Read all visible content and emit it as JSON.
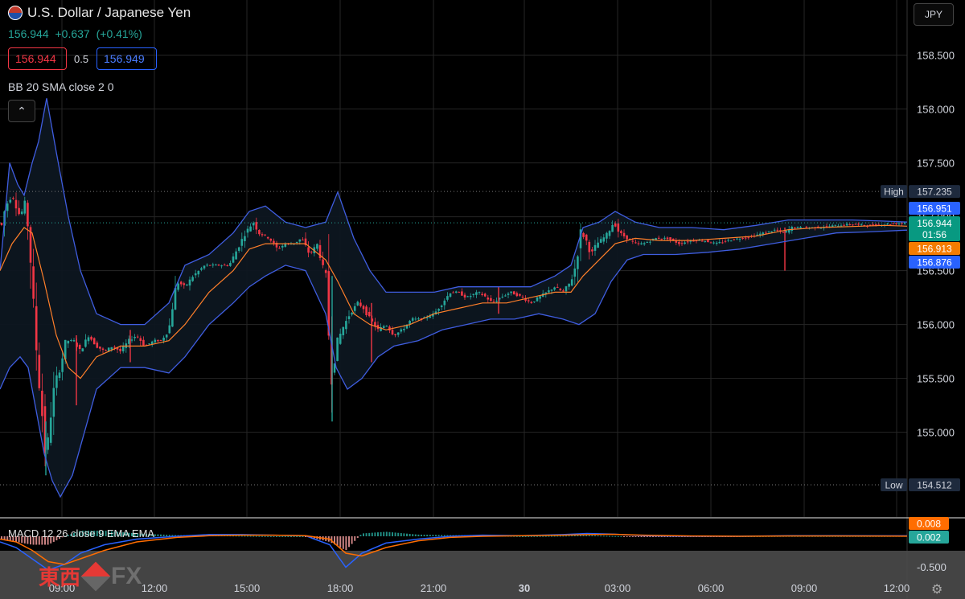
{
  "header": {
    "title": "U.S. Dollar / Japanese Yen",
    "price": "156.944",
    "change": "+0.637",
    "change_pct": "(+0.41%)"
  },
  "trade": {
    "sell_price": "156.944",
    "spread": "0.5",
    "buy_price": "156.949"
  },
  "indicators": {
    "bb_label": "BB 20 SMA close 2 0",
    "macd_label": "MACD 12 26 close 9 EMA EMA"
  },
  "currency_button": "JPY",
  "colors": {
    "background": "#000000",
    "up": "#26a69a",
    "down": "#f23645",
    "bb_band": "#3f5de0",
    "bb_basis": "#ff7f2a",
    "grid": "#2a2a2a"
  },
  "icons": {
    "collapse": "chevron-up-icon",
    "settings": "gear-icon",
    "flag": "us-jp-flag-icon"
  },
  "logo": {
    "chinese": "東西",
    "latin": "FX"
  },
  "chart_data": {
    "type": "candlestick",
    "ylim": [
      154.35,
      158.75
    ],
    "y_ticks": [
      155.0,
      155.5,
      156.0,
      156.5,
      157.0,
      157.5,
      158.0,
      158.5
    ],
    "y_tick_labels": [
      "155.000",
      "155.500",
      "156.000",
      "156.500",
      "157.000",
      "157.500",
      "158.000",
      "158.500"
    ],
    "x_ticks": [
      "09:00",
      "12:00",
      "15:00",
      "18:00",
      "21:00",
      "30",
      "03:00",
      "06:00",
      "09:00",
      "12:00"
    ],
    "grid": true,
    "high": {
      "label": "High",
      "value": "157.235"
    },
    "low": {
      "label": "Low",
      "value": "154.512"
    },
    "last_price_labels": [
      {
        "value": "156.951",
        "color": "#2962ff"
      },
      {
        "value": "156.944",
        "sub": "01:56",
        "color": "#089981"
      },
      {
        "value": "156.913",
        "color": "#f57c00"
      },
      {
        "value": "156.876",
        "color": "#2962ff"
      }
    ],
    "close_path": [
      [
        0,
        156.85
      ],
      [
        7,
        157.1
      ],
      [
        15,
        157.2
      ],
      [
        25,
        157.0
      ],
      [
        32,
        157.15
      ],
      [
        38,
        156.6
      ],
      [
        42,
        156.1
      ],
      [
        47,
        155.6
      ],
      [
        52,
        155.2
      ],
      [
        57,
        154.75
      ],
      [
        62,
        155.1
      ],
      [
        68,
        155.45
      ],
      [
        75,
        155.6
      ],
      [
        82,
        155.85
      ],
      [
        92,
        155.85
      ],
      [
        100,
        155.75
      ],
      [
        110,
        155.9
      ],
      [
        120,
        155.8
      ],
      [
        130,
        155.75
      ],
      [
        140,
        155.8
      ],
      [
        150,
        155.75
      ],
      [
        160,
        155.85
      ],
      [
        170,
        155.9
      ],
      [
        180,
        155.8
      ],
      [
        192,
        155.85
      ],
      [
        200,
        155.85
      ],
      [
        210,
        155.95
      ],
      [
        215,
        156.2
      ],
      [
        220,
        156.4
      ],
      [
        230,
        156.35
      ],
      [
        240,
        156.45
      ],
      [
        255,
        156.55
      ],
      [
        270,
        156.55
      ],
      [
        285,
        156.55
      ],
      [
        295,
        156.7
      ],
      [
        305,
        156.85
      ],
      [
        315,
        156.95
      ],
      [
        322,
        156.85
      ],
      [
        335,
        156.8
      ],
      [
        345,
        156.7
      ],
      [
        355,
        156.75
      ],
      [
        365,
        156.75
      ],
      [
        375,
        156.8
      ],
      [
        385,
        156.65
      ],
      [
        395,
        156.75
      ],
      [
        402,
        156.5
      ],
      [
        406,
        156.45
      ],
      [
        410,
        155.7
      ],
      [
        413,
        155.5
      ],
      [
        418,
        155.8
      ],
      [
        425,
        155.95
      ],
      [
        435,
        156.1
      ],
      [
        445,
        156.2
      ],
      [
        452,
        156.15
      ],
      [
        460,
        156.05
      ],
      [
        470,
        155.95
      ],
      [
        480,
        156.0
      ],
      [
        490,
        155.9
      ],
      [
        500,
        155.95
      ],
      [
        512,
        156.05
      ],
      [
        525,
        156.05
      ],
      [
        540,
        156.1
      ],
      [
        550,
        156.2
      ],
      [
        560,
        156.3
      ],
      [
        570,
        156.3
      ],
      [
        580,
        156.25
      ],
      [
        595,
        156.3
      ],
      [
        605,
        156.25
      ],
      [
        612,
        156.2
      ],
      [
        622,
        156.25
      ],
      [
        635,
        156.3
      ],
      [
        650,
        156.25
      ],
      [
        660,
        156.2
      ],
      [
        670,
        156.25
      ],
      [
        680,
        156.3
      ],
      [
        690,
        156.35
      ],
      [
        700,
        156.3
      ],
      [
        710,
        156.4
      ],
      [
        716,
        156.55
      ],
      [
        722,
        156.85
      ],
      [
        728,
        156.8
      ],
      [
        735,
        156.65
      ],
      [
        742,
        156.75
      ],
      [
        750,
        156.8
      ],
      [
        756,
        156.85
      ],
      [
        763,
        156.95
      ],
      [
        770,
        156.85
      ],
      [
        780,
        156.8
      ],
      [
        790,
        156.75
      ],
      [
        800,
        156.75
      ],
      [
        815,
        156.8
      ],
      [
        830,
        156.8
      ],
      [
        845,
        156.75
      ],
      [
        860,
        156.78
      ],
      [
        875,
        156.78
      ],
      [
        890,
        156.75
      ],
      [
        905,
        156.78
      ],
      [
        920,
        156.8
      ],
      [
        935,
        156.82
      ],
      [
        950,
        156.85
      ],
      [
        965,
        156.88
      ],
      [
        975,
        156.85
      ],
      [
        985,
        156.9
      ],
      [
        1000,
        156.9
      ],
      [
        1020,
        156.9
      ],
      [
        1040,
        156.92
      ],
      [
        1060,
        156.93
      ],
      [
        1080,
        156.92
      ],
      [
        1100,
        156.93
      ],
      [
        1120,
        156.94
      ],
      [
        1128,
        156.944
      ]
    ],
    "bb_upper": [
      [
        0,
        156.5
      ],
      [
        12,
        157.5
      ],
      [
        22,
        157.3
      ],
      [
        30,
        157.2
      ],
      [
        40,
        157.5
      ],
      [
        48,
        157.7
      ],
      [
        58,
        158.1
      ],
      [
        70,
        157.6
      ],
      [
        85,
        157.0
      ],
      [
        100,
        156.5
      ],
      [
        120,
        156.1
      ],
      [
        150,
        156.0
      ],
      [
        180,
        156.0
      ],
      [
        210,
        156.2
      ],
      [
        230,
        156.55
      ],
      [
        260,
        156.65
      ],
      [
        290,
        156.85
      ],
      [
        310,
        157.05
      ],
      [
        330,
        157.1
      ],
      [
        355,
        156.95
      ],
      [
        380,
        156.9
      ],
      [
        405,
        156.95
      ],
      [
        420,
        157.23
      ],
      [
        440,
        156.8
      ],
      [
        460,
        156.5
      ],
      [
        480,
        156.3
      ],
      [
        510,
        156.3
      ],
      [
        540,
        156.3
      ],
      [
        570,
        156.35
      ],
      [
        600,
        156.35
      ],
      [
        630,
        156.35
      ],
      [
        660,
        156.35
      ],
      [
        690,
        156.45
      ],
      [
        710,
        156.55
      ],
      [
        725,
        156.9
      ],
      [
        745,
        156.95
      ],
      [
        765,
        157.05
      ],
      [
        790,
        156.95
      ],
      [
        820,
        156.9
      ],
      [
        860,
        156.9
      ],
      [
        900,
        156.88
      ],
      [
        940,
        156.92
      ],
      [
        980,
        156.97
      ],
      [
        1020,
        156.97
      ],
      [
        1060,
        156.97
      ],
      [
        1100,
        156.96
      ],
      [
        1128,
        156.951
      ]
    ],
    "bb_lower": [
      [
        0,
        155.4
      ],
      [
        12,
        155.6
      ],
      [
        25,
        155.7
      ],
      [
        35,
        155.6
      ],
      [
        45,
        155.2
      ],
      [
        55,
        154.8
      ],
      [
        65,
        154.55
      ],
      [
        75,
        154.4
      ],
      [
        90,
        154.6
      ],
      [
        105,
        155.0
      ],
      [
        120,
        155.4
      ],
      [
        150,
        155.6
      ],
      [
        180,
        155.6
      ],
      [
        210,
        155.55
      ],
      [
        230,
        155.7
      ],
      [
        260,
        156.0
      ],
      [
        290,
        156.2
      ],
      [
        310,
        156.35
      ],
      [
        330,
        156.45
      ],
      [
        355,
        156.55
      ],
      [
        380,
        156.5
      ],
      [
        405,
        156.1
      ],
      [
        418,
        155.6
      ],
      [
        432,
        155.4
      ],
      [
        450,
        155.5
      ],
      [
        470,
        155.7
      ],
      [
        490,
        155.8
      ],
      [
        520,
        155.85
      ],
      [
        550,
        155.95
      ],
      [
        580,
        156.0
      ],
      [
        610,
        156.05
      ],
      [
        640,
        156.05
      ],
      [
        670,
        156.1
      ],
      [
        700,
        156.05
      ],
      [
        720,
        156.0
      ],
      [
        740,
        156.1
      ],
      [
        760,
        156.4
      ],
      [
        780,
        156.6
      ],
      [
        800,
        156.65
      ],
      [
        840,
        156.65
      ],
      [
        880,
        156.67
      ],
      [
        920,
        156.7
      ],
      [
        960,
        156.75
      ],
      [
        1000,
        156.8
      ],
      [
        1040,
        156.85
      ],
      [
        1080,
        156.86
      ],
      [
        1128,
        156.876
      ]
    ],
    "bb_basis": [
      [
        0,
        156.5
      ],
      [
        15,
        156.75
      ],
      [
        30,
        156.9
      ],
      [
        40,
        156.85
      ],
      [
        55,
        156.4
      ],
      [
        70,
        155.9
      ],
      [
        85,
        155.6
      ],
      [
        100,
        155.5
      ],
      [
        120,
        155.7
      ],
      [
        150,
        155.8
      ],
      [
        180,
        155.8
      ],
      [
        210,
        155.85
      ],
      [
        230,
        156.0
      ],
      [
        260,
        156.3
      ],
      [
        290,
        156.5
      ],
      [
        310,
        156.7
      ],
      [
        330,
        156.75
      ],
      [
        355,
        156.75
      ],
      [
        380,
        156.75
      ],
      [
        405,
        156.6
      ],
      [
        420,
        156.4
      ],
      [
        440,
        156.1
      ],
      [
        460,
        156.0
      ],
      [
        480,
        155.95
      ],
      [
        510,
        156.0
      ],
      [
        540,
        156.1
      ],
      [
        570,
        156.15
      ],
      [
        600,
        156.2
      ],
      [
        630,
        156.2
      ],
      [
        660,
        156.25
      ],
      [
        690,
        156.3
      ],
      [
        710,
        156.3
      ],
      [
        725,
        156.45
      ],
      [
        745,
        156.6
      ],
      [
        765,
        156.75
      ],
      [
        790,
        156.8
      ],
      [
        820,
        156.78
      ],
      [
        860,
        156.78
      ],
      [
        900,
        156.8
      ],
      [
        940,
        156.82
      ],
      [
        980,
        156.88
      ],
      [
        1020,
        156.9
      ],
      [
        1060,
        156.91
      ],
      [
        1100,
        156.92
      ],
      [
        1128,
        156.913
      ]
    ],
    "spikes": [
      [
        57,
        154.6,
        155.1
      ],
      [
        95,
        155.25,
        155.9
      ],
      [
        162,
        155.65,
        155.95
      ],
      [
        413,
        155.1,
        156.45
      ],
      [
        462,
        155.65,
        156.2
      ],
      [
        620,
        156.1,
        156.35
      ],
      [
        976,
        156.5,
        156.9
      ]
    ],
    "macd": {
      "ylim": [
        -0.75,
        0.05
      ],
      "y_tick_labels": [
        "-0.500"
      ],
      "macd_value": "0.008",
      "signal_value": "0.002",
      "macd_color": "#2962ff",
      "signal_color": "#ff6d00",
      "macd_line": [
        [
          0,
          -0.1
        ],
        [
          20,
          -0.2
        ],
        [
          40,
          -0.4
        ],
        [
          60,
          -0.6
        ],
        [
          80,
          -0.5
        ],
        [
          100,
          -0.3
        ],
        [
          130,
          -0.15
        ],
        [
          170,
          -0.05
        ],
        [
          220,
          0.0
        ],
        [
          260,
          0.03
        ],
        [
          300,
          0.03
        ],
        [
          340,
          0.02
        ],
        [
          380,
          0.01
        ],
        [
          410,
          -0.15
        ],
        [
          430,
          -0.55
        ],
        [
          450,
          -0.3
        ],
        [
          480,
          -0.12
        ],
        [
          520,
          -0.05
        ],
        [
          560,
          0.0
        ],
        [
          600,
          0.02
        ],
        [
          650,
          0.01
        ],
        [
          700,
          0.03
        ],
        [
          730,
          0.05
        ],
        [
          760,
          0.04
        ],
        [
          800,
          0.01
        ],
        [
          860,
          0.0
        ],
        [
          920,
          0.0
        ],
        [
          980,
          0.01
        ],
        [
          1040,
          0.01
        ],
        [
          1100,
          0.008
        ],
        [
          1128,
          0.008
        ]
      ],
      "signal_line": [
        [
          0,
          -0.05
        ],
        [
          20,
          -0.1
        ],
        [
          40,
          -0.25
        ],
        [
          60,
          -0.45
        ],
        [
          80,
          -0.5
        ],
        [
          100,
          -0.4
        ],
        [
          130,
          -0.25
        ],
        [
          170,
          -0.1
        ],
        [
          220,
          -0.02
        ],
        [
          260,
          0.01
        ],
        [
          300,
          0.02
        ],
        [
          340,
          0.02
        ],
        [
          380,
          0.01
        ],
        [
          410,
          -0.05
        ],
        [
          430,
          -0.3
        ],
        [
          450,
          -0.35
        ],
        [
          480,
          -0.2
        ],
        [
          520,
          -0.08
        ],
        [
          560,
          -0.02
        ],
        [
          600,
          0.0
        ],
        [
          650,
          0.01
        ],
        [
          700,
          0.02
        ],
        [
          730,
          0.03
        ],
        [
          760,
          0.035
        ],
        [
          800,
          0.02
        ],
        [
          860,
          0.005
        ],
        [
          920,
          0.0
        ],
        [
          980,
          0.005
        ],
        [
          1040,
          0.006
        ],
        [
          1100,
          0.004
        ],
        [
          1128,
          0.002
        ]
      ]
    }
  }
}
